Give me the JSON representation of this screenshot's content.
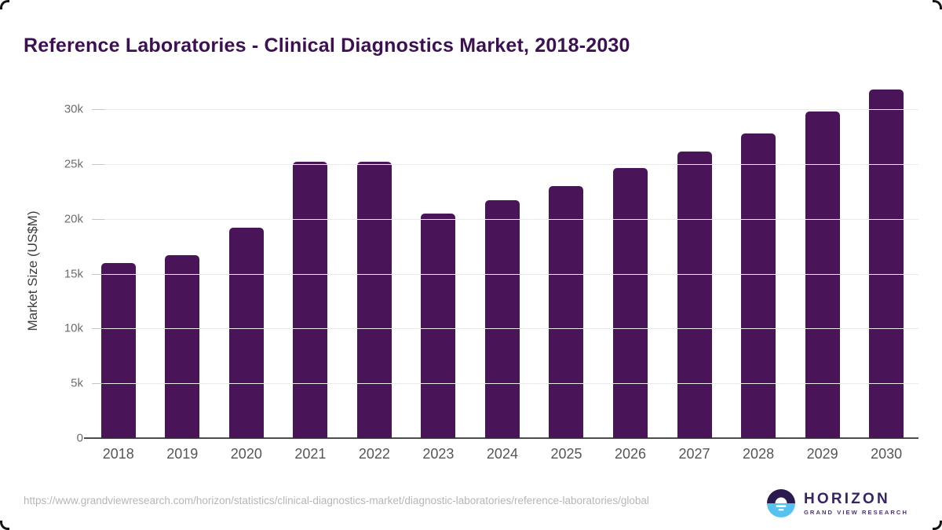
{
  "title": "Reference Laboratories - Clinical Diagnostics Market, 2018-2030",
  "chart_data": {
    "type": "bar",
    "title": "Reference Laboratories - Clinical Diagnostics Market, 2018-2030",
    "categories": [
      "2018",
      "2019",
      "2020",
      "2021",
      "2022",
      "2023",
      "2024",
      "2025",
      "2026",
      "2027",
      "2028",
      "2029",
      "2030"
    ],
    "values": [
      16000,
      16700,
      19200,
      25200,
      25200,
      20500,
      21700,
      23000,
      24600,
      26100,
      27800,
      29800,
      31800
    ],
    "xlabel": "",
    "ylabel": "Market Size (US$M)",
    "ylim": [
      0,
      32000
    ],
    "yticks": [
      0,
      5000,
      10000,
      15000,
      20000,
      25000,
      30000
    ],
    "ytick_labels": [
      "0",
      "5k",
      "10k",
      "15k",
      "20k",
      "25k",
      "30k"
    ],
    "grid": true,
    "legend": "none",
    "bar_color": "#4a1458"
  },
  "colors": {
    "title": "#3c1053",
    "bar": "#4a1458",
    "gridline": "#ebebeb",
    "axis_line": "#4d4d4d",
    "tick_text": "#6d6d6d",
    "logo_dark": "#2a1a4e",
    "logo_blue": "#56c2f0"
  },
  "footer": {
    "source_url": "https://www.grandviewresearch.com/horizon/statistics/clinical-diagnostics-market/diagnostic-laboratories/reference-laboratories/global",
    "logo_name": "HORIZON",
    "logo_tagline": "GRAND VIEW RESEARCH"
  }
}
